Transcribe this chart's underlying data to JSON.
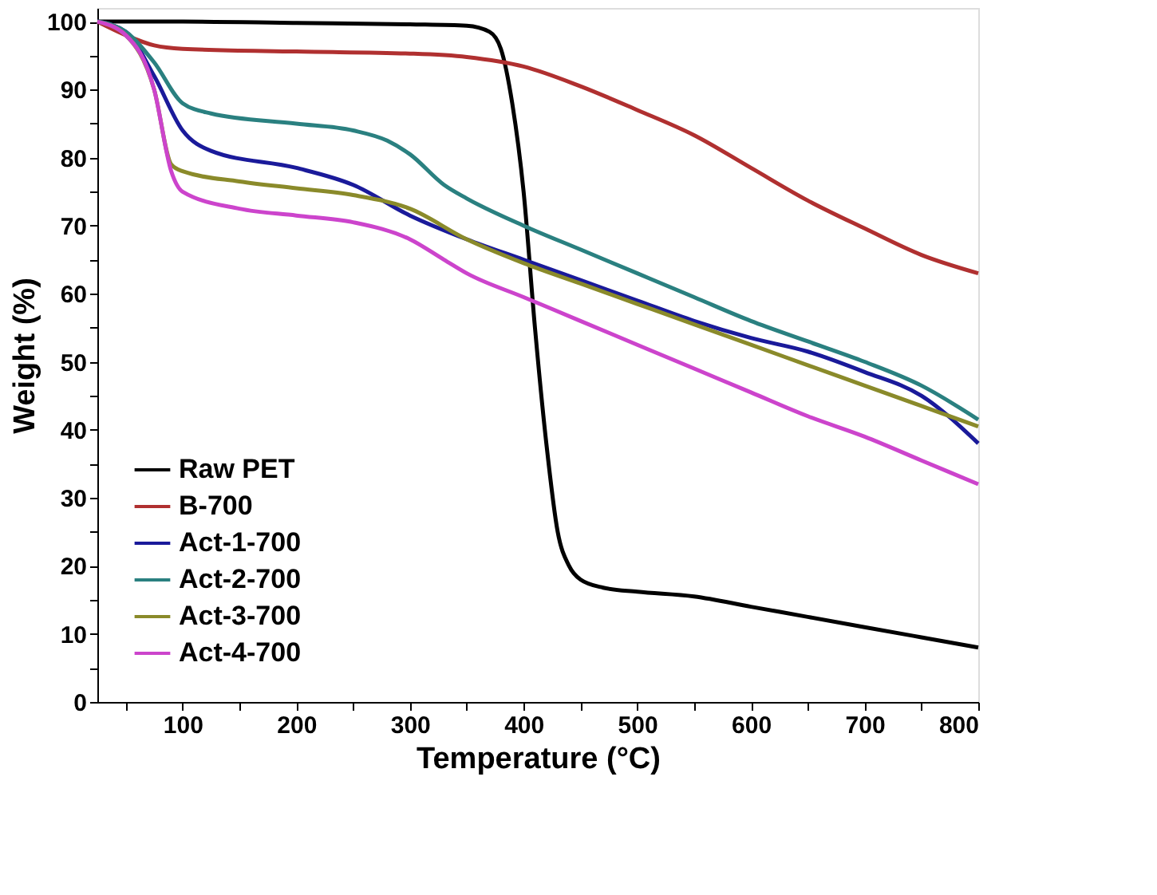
{
  "chart_data": {
    "type": "line",
    "xlabel": "Temperature (°C)",
    "ylabel": "Weight (%)",
    "xlim": [
      25,
      800
    ],
    "ylim": [
      0,
      102
    ],
    "xticks": [
      {
        "value": 50,
        "label": null
      },
      100,
      {
        "value": 150,
        "label": null
      },
      200,
      {
        "value": 250,
        "label": null
      },
      300,
      {
        "value": 350,
        "label": null
      },
      400,
      {
        "value": 450,
        "label": null
      },
      500,
      {
        "value": 550,
        "label": null
      },
      600,
      {
        "value": 650,
        "label": null
      },
      700,
      {
        "value": 750,
        "label": null
      },
      800
    ],
    "yticks": [
      0,
      {
        "value": 5,
        "label": null
      },
      10,
      {
        "value": 15,
        "label": null
      },
      20,
      {
        "value": 25,
        "label": null
      },
      30,
      {
        "value": 35,
        "label": null
      },
      40,
      {
        "value": 45,
        "label": null
      },
      50,
      {
        "value": 55,
        "label": null
      },
      60,
      {
        "value": 65,
        "label": null
      },
      70,
      {
        "value": 75,
        "label": null
      },
      80,
      {
        "value": 85,
        "label": null
      },
      90,
      {
        "value": 95,
        "label": null
      },
      100
    ],
    "grid": false,
    "legend": "bottom left",
    "line_style": "solid",
    "series": [
      {
        "name": "Raw PET",
        "color": "#000000",
        "x": [
          25,
          100,
          200,
          300,
          350,
          370,
          380,
          390,
          400,
          410,
          420,
          430,
          440,
          450,
          470,
          500,
          550,
          600,
          650,
          700,
          750,
          800
        ],
        "values": [
          100,
          100,
          99.8,
          99.6,
          99.4,
          98.5,
          96,
          88,
          75,
          55,
          38,
          25,
          20,
          18,
          16.8,
          16.2,
          15.5,
          14,
          12.5,
          11,
          9.5,
          8
        ]
      },
      {
        "name": "B-700",
        "color": "#b03030",
        "x": [
          25,
          50,
          75,
          100,
          200,
          300,
          350,
          400,
          450,
          500,
          550,
          600,
          650,
          700,
          750,
          800
        ],
        "values": [
          100,
          98,
          96.5,
          96,
          95.6,
          95.3,
          94.8,
          93.4,
          90.5,
          87,
          83.3,
          78.5,
          73.7,
          69.6,
          65.7,
          63
        ]
      },
      {
        "name": "Act-1-700",
        "color": "#1a1a9a",
        "x": [
          25,
          50,
          75,
          100,
          125,
          200,
          250,
          300,
          350,
          400,
          450,
          500,
          550,
          600,
          650,
          700,
          750,
          800
        ],
        "values": [
          100,
          98.5,
          92,
          84,
          81,
          78.5,
          76,
          71.5,
          68,
          65,
          62,
          59,
          56,
          53.5,
          51.5,
          48.5,
          45,
          38
        ]
      },
      {
        "name": "Act-2-700",
        "color": "#2a8080",
        "x": [
          25,
          50,
          75,
          100,
          125,
          200,
          250,
          280,
          300,
          330,
          350,
          400,
          450,
          500,
          550,
          600,
          650,
          700,
          750,
          800
        ],
        "values": [
          100,
          98.5,
          94,
          88,
          86.5,
          85,
          84,
          82.5,
          80.5,
          76,
          74,
          70,
          66.5,
          63,
          59.5,
          56,
          53,
          50,
          46.5,
          41.5
        ]
      },
      {
        "name": "Act-3-700",
        "color": "#8a8a2a",
        "x": [
          25,
          50,
          75,
          90,
          100,
          150,
          200,
          250,
          300,
          350,
          400,
          450,
          500,
          550,
          600,
          650,
          700,
          750,
          800
        ],
        "values": [
          100,
          98,
          90,
          79,
          78,
          76.5,
          75.5,
          74.5,
          72.5,
          68,
          64.5,
          61.5,
          58.5,
          55.5,
          52.5,
          49.5,
          46.5,
          43.5,
          40.5
        ]
      },
      {
        "name": "Act-4-700",
        "color": "#cc44cc",
        "x": [
          25,
          50,
          75,
          90,
          100,
          150,
          200,
          250,
          300,
          330,
          350,
          400,
          450,
          500,
          550,
          600,
          650,
          700,
          750,
          800
        ],
        "values": [
          100,
          98,
          90,
          78,
          75,
          72.5,
          71.5,
          70.5,
          68,
          65,
          63,
          59.5,
          56,
          52.5,
          49,
          45.5,
          42,
          39,
          35.5,
          32
        ]
      }
    ]
  }
}
